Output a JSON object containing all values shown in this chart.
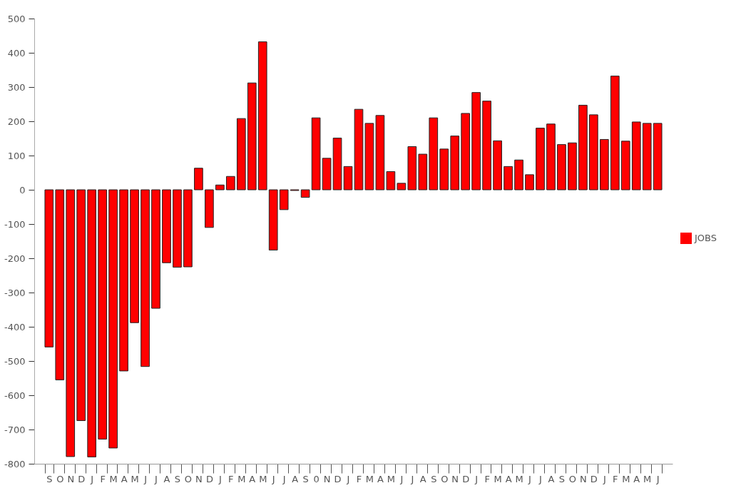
{
  "chart_data": {
    "type": "bar",
    "categories": [
      "S",
      "O",
      "N",
      "D",
      "J",
      "F",
      "M",
      "A",
      "M",
      "J",
      "J",
      "A",
      "S",
      "O",
      "N",
      "D",
      "J",
      "F",
      "M",
      "A",
      "M",
      "J",
      "J",
      "A",
      "S",
      "0",
      "N",
      "D",
      "J",
      "F",
      "M",
      "A",
      "M",
      "J",
      "J",
      "A",
      "S",
      "O",
      "N",
      "D",
      "J",
      "F",
      "M",
      "A",
      "M",
      "J",
      "J",
      "A",
      "S",
      "O",
      "N",
      "D",
      "J",
      "F",
      "M",
      "A",
      "M",
      "J"
    ],
    "series": [
      {
        "name": "JOBS",
        "color": "#ff0000",
        "values": [
          -459,
          -555,
          -779,
          -674,
          -780,
          -728,
          -754,
          -529,
          -388,
          -516,
          -346,
          -213,
          -226,
          -225,
          63,
          -110,
          14,
          39,
          208,
          312,
          432,
          -176,
          -58,
          -2,
          -22,
          210,
          92,
          151,
          68,
          235,
          194,
          217,
          53,
          19,
          126,
          104,
          210,
          119,
          157,
          223,
          284,
          259,
          143,
          68,
          87,
          44,
          180,
          192,
          132,
          137,
          247,
          219,
          147,
          332,
          142,
          198,
          194,
          194
        ]
      }
    ],
    "ylim": [
      -800,
      500
    ],
    "yticks": [
      -800,
      -700,
      -600,
      -500,
      -400,
      -300,
      -200,
      -100,
      0,
      100,
      200,
      300,
      400,
      500
    ],
    "grid": false,
    "legend": "right"
  }
}
